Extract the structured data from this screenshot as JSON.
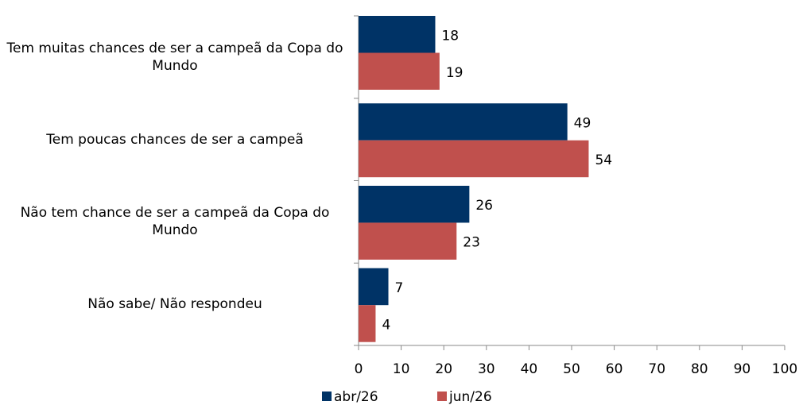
{
  "chart_data": {
    "type": "bar",
    "orientation": "horizontal",
    "categories": [
      "Tem muitas chances de ser a campeã da Copa do Mundo",
      "Tem poucas chances de ser a campeã",
      "Não tem chance de ser a campeã da Copa do Mundo",
      "Não sabe/ Não respondeu"
    ],
    "series": [
      {
        "name": "abr/26",
        "color": "#003366",
        "values": [
          18,
          49,
          26,
          7
        ]
      },
      {
        "name": "jun/26",
        "color": "#c0504d",
        "values": [
          19,
          54,
          23,
          4
        ]
      }
    ],
    "xlim": [
      0,
      100
    ],
    "xticks": [
      0,
      10,
      20,
      30,
      40,
      50,
      60,
      70,
      80,
      90,
      100
    ],
    "legend": "bottom"
  }
}
